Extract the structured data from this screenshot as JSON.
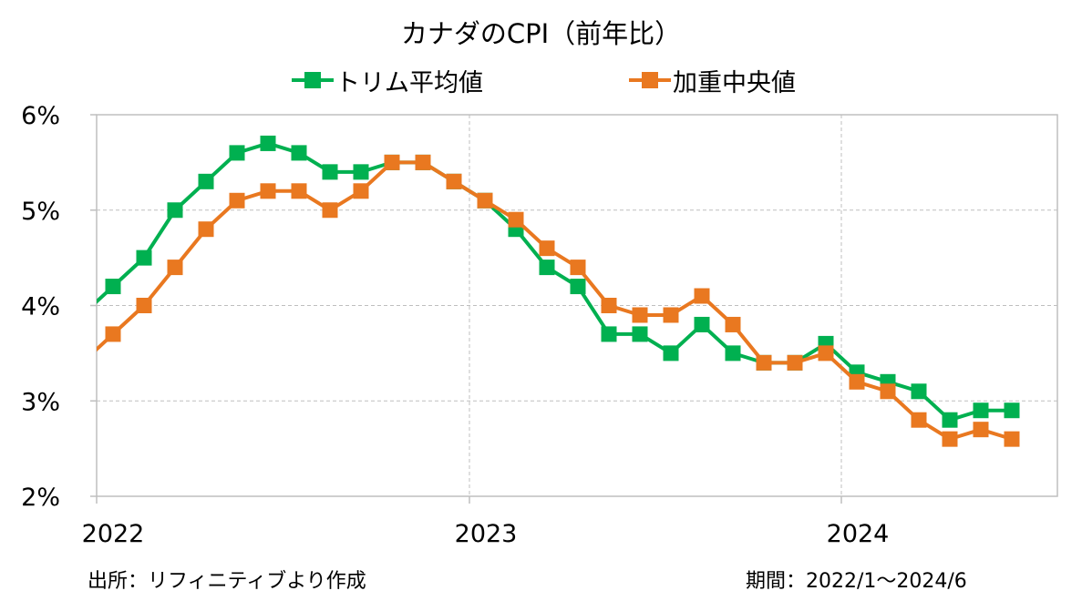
{
  "chart_data": {
    "type": "line",
    "title": "カナダのCPI（前年比）",
    "xlabel": "",
    "ylabel": "",
    "x": [
      "2022-01",
      "2022-02",
      "2022-03",
      "2022-04",
      "2022-05",
      "2022-06",
      "2022-07",
      "2022-08",
      "2022-09",
      "2022-10",
      "2022-11",
      "2022-12",
      "2023-01",
      "2023-02",
      "2023-03",
      "2023-04",
      "2023-05",
      "2023-06",
      "2023-07",
      "2023-08",
      "2023-09",
      "2023-10",
      "2023-11",
      "2023-12",
      "2024-01",
      "2024-02",
      "2024-03",
      "2024-04",
      "2024-05",
      "2024-06"
    ],
    "x_tick_labels": [
      "2022",
      "2023",
      "2024"
    ],
    "y_ticks": [
      2,
      3,
      4,
      5,
      6
    ],
    "y_tick_labels": [
      "2%",
      "3%",
      "4%",
      "5%",
      "6%"
    ],
    "ylim": [
      2,
      6
    ],
    "grid": true,
    "legend_position": "top",
    "series": [
      {
        "name": "トリム平均値",
        "color": "#00B050",
        "values": [
          4.2,
          4.5,
          5.0,
          5.3,
          5.6,
          5.7,
          5.6,
          5.4,
          5.4,
          5.5,
          5.5,
          5.3,
          5.1,
          4.8,
          4.4,
          4.2,
          3.7,
          3.7,
          3.5,
          3.8,
          3.5,
          3.4,
          3.4,
          3.6,
          3.3,
          3.2,
          3.1,
          2.8,
          2.9,
          2.9
        ]
      },
      {
        "name": "加重中央値",
        "color": "#E97820",
        "values": [
          3.7,
          4.0,
          4.4,
          4.8,
          5.1,
          5.2,
          5.2,
          5.0,
          5.2,
          5.5,
          5.5,
          5.3,
          5.1,
          4.9,
          4.6,
          4.4,
          4.0,
          3.9,
          3.9,
          4.1,
          3.8,
          3.4,
          3.4,
          3.5,
          3.2,
          3.1,
          2.8,
          2.6,
          2.7,
          2.6
        ]
      }
    ]
  },
  "footer": {
    "source": "出所：リフィニティブより作成",
    "period": "期間：2022/1～2024/6"
  }
}
